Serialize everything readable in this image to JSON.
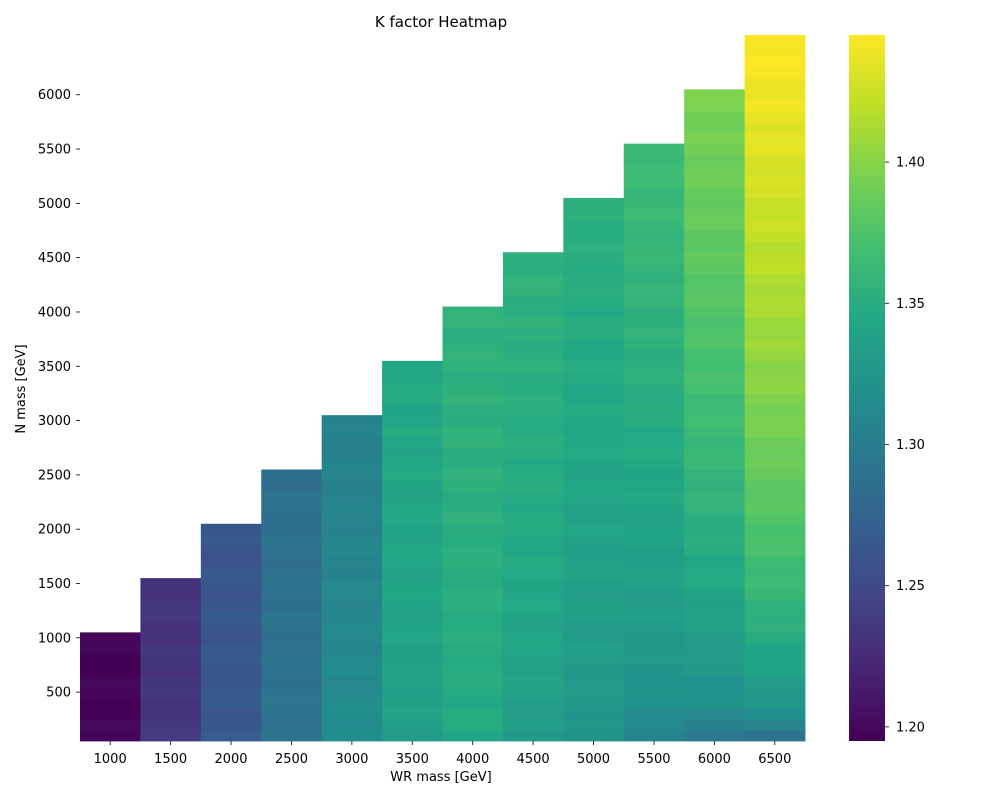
{
  "chart_data": {
    "type": "heatmap",
    "title": "K factor Heatmap",
    "xlabel": "WR mass [GeV]",
    "ylabel": "N mass [GeV]",
    "x_ticks": [
      "1000",
      "1500",
      "2000",
      "2500",
      "3000",
      "3500",
      "4000",
      "4500",
      "5000",
      "5500",
      "6000",
      "6500"
    ],
    "y_ticks": [
      "500",
      "1000",
      "1500",
      "2000",
      "2500",
      "3000",
      "3500",
      "4000",
      "4500",
      "5000",
      "5500",
      "6000"
    ],
    "colorbar_ticks": [
      "1.20",
      "1.25",
      "1.30",
      "1.35",
      "1.40"
    ],
    "colorbar_range": [
      1.195,
      1.445
    ],
    "colormap": "viridis",
    "x_values": [
      1000,
      1500,
      2000,
      2500,
      3000,
      3500,
      4000,
      4500,
      5000,
      5500,
      6000,
      6500
    ],
    "y_range": [
      100,
      6500
    ],
    "y_step": 100,
    "columns": [
      {
        "wr": 1000,
        "n_max": 1000,
        "k_low": 1.197,
        "k_high": 1.197
      },
      {
        "wr": 1500,
        "n_max": 1500,
        "k_low": 1.235,
        "k_high": 1.232
      },
      {
        "wr": 2000,
        "n_max": 2000,
        "k_low": 1.265,
        "k_high": 1.262
      },
      {
        "wr": 2500,
        "n_max": 2500,
        "k_low": 1.29,
        "k_high": 1.287
      },
      {
        "wr": 3000,
        "n_max": 3000,
        "k_low": 1.318,
        "k_high": 1.305
      },
      {
        "wr": 3500,
        "n_max": 3500,
        "k_low": 1.335,
        "k_high": 1.345
      },
      {
        "wr": 4000,
        "n_max": 4000,
        "k_low": 1.345,
        "k_high": 1.355
      },
      {
        "wr": 4500,
        "n_max": 4500,
        "k_low": 1.33,
        "k_high": 1.355
      },
      {
        "wr": 5000,
        "n_max": 5000,
        "k_low": 1.32,
        "k_high": 1.352
      },
      {
        "wr": 5500,
        "n_max": 5500,
        "k_low": 1.305,
        "k_high": 1.365
      },
      {
        "wr": 6000,
        "n_max": 6000,
        "k_low": 1.295,
        "k_high": 1.395
      },
      {
        "wr": 6500,
        "n_max": 6500,
        "k_low": 1.29,
        "k_high": 1.445
      }
    ]
  }
}
